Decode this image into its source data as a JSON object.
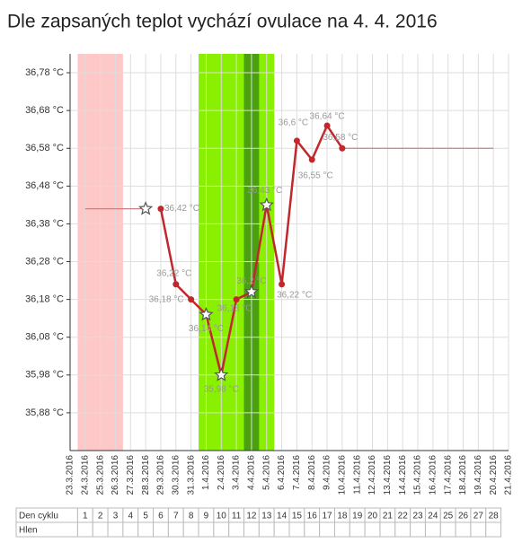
{
  "chart_data": {
    "type": "line",
    "title": "Dle zapsaných teplot vychází ovulace na 4. 4. 2016",
    "categories": [
      "23.3.2016",
      "24.3.2016",
      "25.3.2016",
      "26.3.2016",
      "27.3.2016",
      "28.3.2016",
      "29.3.2016",
      "30.3.2016",
      "31.3.2016",
      "1.4.2016",
      "2.4.2016",
      "3.4.2016",
      "4.4.2016",
      "5.4.2016",
      "6.4.2016",
      "7.4.2016",
      "8.4.2016",
      "9.4.2016",
      "10.4.2016",
      "11.4.2016",
      "12.4.2016",
      "13.4.2016",
      "14.4.2016",
      "15.4.2016",
      "16.4.2016",
      "17.4.2016",
      "18.4.2016",
      "19.4.2016",
      "20.4.2016",
      "21.4.2016"
    ],
    "series": [
      {
        "color": "#c0282d",
        "values": [
          null,
          null,
          null,
          null,
          null,
          null,
          36.42,
          36.22,
          36.18,
          36.14,
          35.98,
          36.18,
          36.2,
          36.43,
          36.22,
          36.6,
          36.55,
          36.64,
          36.58,
          null,
          null,
          null,
          null,
          null,
          null,
          null,
          null,
          null,
          null,
          null
        ],
        "value_labels": [
          null,
          null,
          null,
          null,
          null,
          null,
          "36,42 °C",
          "36,22 °C",
          "36,18 °C",
          "36,14 °C",
          "35,98 °C",
          "36,18 °C",
          "36,2 °C",
          "36,43 °C",
          "36,22 °C",
          "36,6 °C",
          "36,55 °C",
          "36,64 °C",
          "36,58 °C",
          null,
          null,
          null,
          null,
          null,
          null,
          null,
          null,
          null,
          null,
          null
        ]
      },
      {
        "color": "#c98080",
        "values": [
          null,
          36.42,
          36.42,
          36.42,
          36.42,
          36.42,
          null,
          null,
          null,
          null,
          null,
          null,
          null,
          null,
          null,
          null,
          null,
          null,
          36.58,
          36.58,
          36.58,
          36.58,
          36.58,
          36.58,
          36.58,
          36.58,
          36.58,
          36.58,
          36.58,
          null
        ]
      },
      {
        "color": "#555555",
        "values": [
          null,
          null,
          null,
          null,
          null,
          36.42,
          null,
          null,
          null,
          36.14,
          35.98,
          null,
          36.2,
          36.43,
          null,
          null,
          null,
          null,
          null,
          null,
          null,
          null,
          null,
          null,
          null,
          null,
          null,
          null,
          null,
          null
        ]
      }
    ],
    "bands": [
      {
        "from": "24.3.2016",
        "to": "26.3.2016",
        "color": "#ffc8c8"
      },
      {
        "from": "1.4.2016",
        "to": "5.4.2016",
        "color": "#88f000"
      },
      {
        "from": "4.4.2016",
        "to": "4.4.2016",
        "color": "#4aa010"
      }
    ],
    "ylim": [
      35.78,
      36.83
    ],
    "yticks": [
      {
        "value": 35.88,
        "label": "35,88 °C"
      },
      {
        "value": 35.98,
        "label": "35,98 °C"
      },
      {
        "value": 36.08,
        "label": "36,08 °C"
      },
      {
        "value": 36.18,
        "label": "36,18 °C"
      },
      {
        "value": 36.28,
        "label": "36,28 °C"
      },
      {
        "value": 36.38,
        "label": "36,38 °C"
      },
      {
        "value": 36.48,
        "label": "36,48 °C"
      },
      {
        "value": 36.58,
        "label": "36,58 °C"
      },
      {
        "value": 36.68,
        "label": "36,68 °C"
      },
      {
        "value": 36.78,
        "label": "36,78 °C"
      }
    ],
    "grid": true,
    "table": {
      "rows": [
        {
          "label": "Den cyklu",
          "cells": [
            "1",
            "2",
            "3",
            "4",
            "5",
            "6",
            "7",
            "8",
            "9",
            "10",
            "11",
            "12",
            "13",
            "14",
            "15",
            "16",
            "17",
            "18",
            "19",
            "20",
            "21",
            "22",
            "23",
            "24",
            "25",
            "26",
            "27",
            "28"
          ]
        },
        {
          "label": "Hlen",
          "cells": [
            "",
            "",
            "",
            "",
            "",
            "",
            "",
            "",
            "",
            "",
            "",
            "",
            "",
            "",
            "",
            "",
            "",
            "",
            "",
            "",
            "",
            "",
            "",
            "",
            "",
            "",
            "",
            ""
          ]
        }
      ]
    }
  }
}
